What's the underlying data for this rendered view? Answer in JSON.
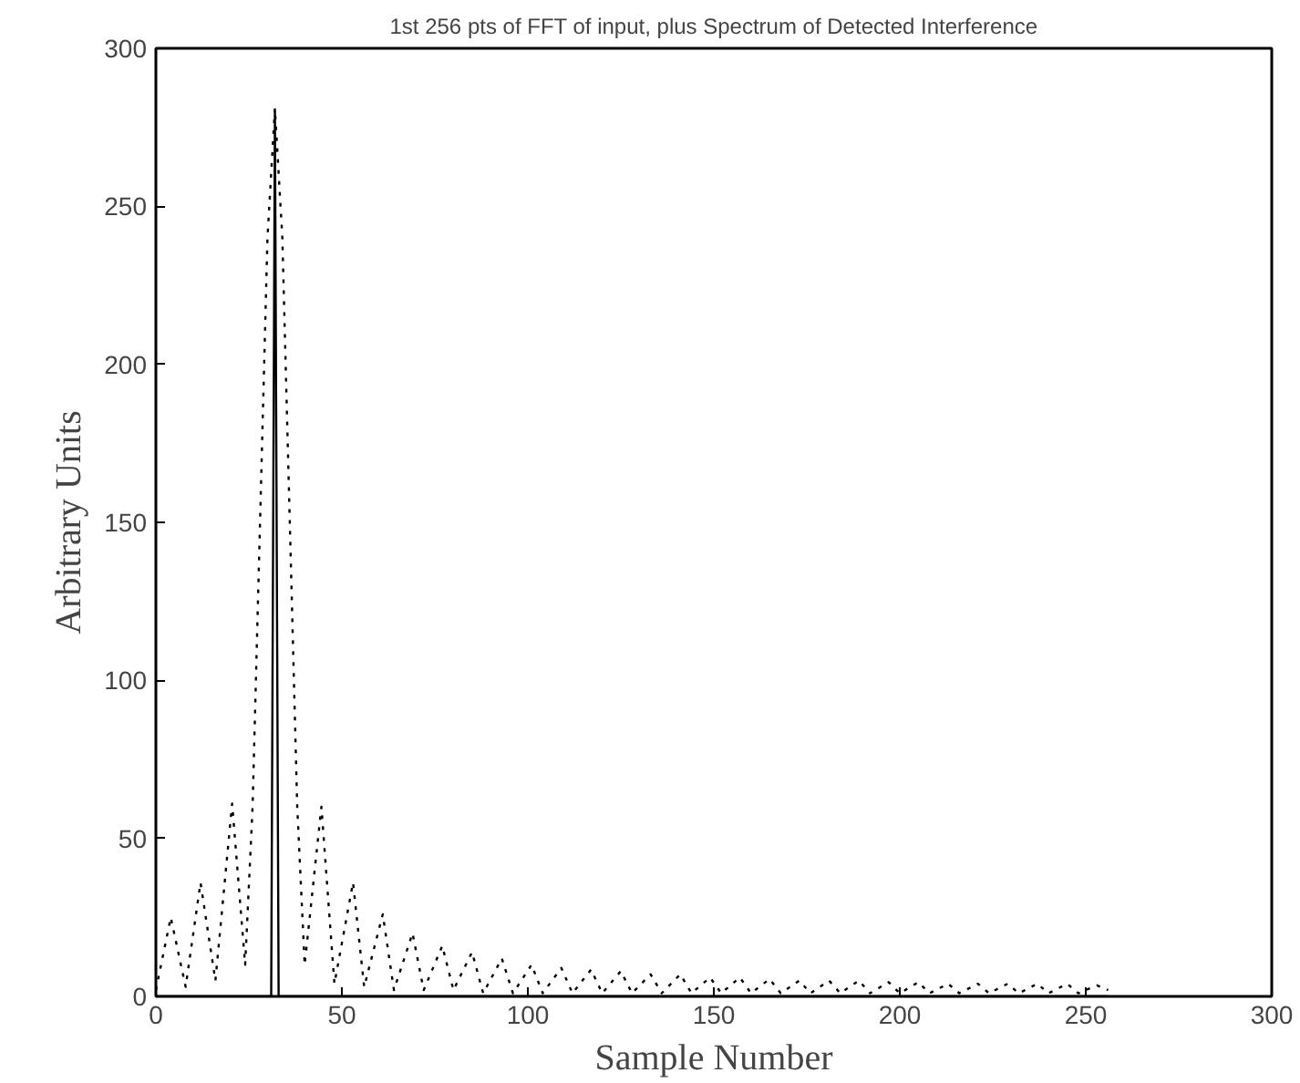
{
  "chart_data": {
    "type": "line",
    "title": "1st 256 pts of FFT of input, plus Spectrum of Detected Interference",
    "xlabel": "Sample Number",
    "ylabel": "Arbitrary Units",
    "xlim": [
      0,
      300
    ],
    "ylim": [
      0,
      300
    ],
    "xticks": [
      0,
      50,
      100,
      150,
      200,
      250,
      300
    ],
    "yticks": [
      0,
      50,
      100,
      150,
      200,
      250,
      300
    ],
    "marker": "none",
    "series": [
      {
        "color": "#000000",
        "line_style": "dotted",
        "x": [
          0,
          4,
          8,
          12,
          16,
          20.5,
          24,
          26,
          28,
          30,
          32,
          34,
          36,
          38,
          40,
          44.5,
          48,
          53,
          56,
          61,
          64,
          69,
          72,
          77,
          80,
          85,
          88,
          93,
          96,
          101,
          104,
          109,
          112,
          117,
          120,
          125,
          128,
          133,
          136,
          141,
          144,
          149,
          152,
          157,
          160,
          165,
          168,
          173,
          176,
          181,
          184,
          189,
          192,
          197,
          200,
          205,
          208,
          213,
          216,
          221,
          224,
          229,
          232,
          237,
          240,
          245,
          248,
          253,
          256
        ],
        "values": [
          2,
          25,
          3,
          36,
          5,
          61,
          10,
          60,
          150,
          240,
          281,
          240,
          150,
          60,
          10,
          60,
          4,
          36,
          3,
          26,
          2,
          20,
          2,
          16,
          2,
          14,
          1,
          12,
          1,
          10,
          1,
          9,
          1,
          8.5,
          1,
          8,
          1,
          7,
          1,
          7,
          1,
          6,
          1,
          6,
          1,
          5.5,
          1,
          5,
          1,
          5,
          1,
          5,
          1,
          4.5,
          1,
          4.5,
          1,
          4,
          1,
          4,
          1,
          4,
          1,
          4,
          1,
          4,
          1,
          3.5,
          2
        ]
      },
      {
        "color": "#000000",
        "line_style": "solid",
        "x": [
          0,
          31,
          32,
          33,
          256
        ],
        "values": [
          0,
          0,
          280,
          0,
          0
        ]
      }
    ]
  }
}
